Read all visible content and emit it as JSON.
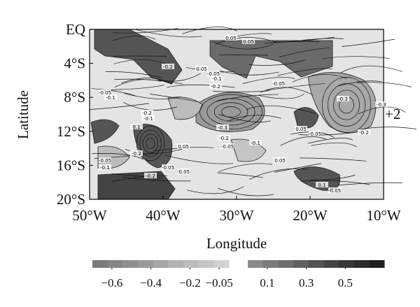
{
  "chart_data": {
    "type": "contour-map",
    "xlabel": "Longitude",
    "ylabel": "Latitude",
    "xlim": [
      -50,
      -10
    ],
    "ylim": [
      -20,
      0
    ],
    "xticks": [
      {
        "value": -50,
        "label": "50°W"
      },
      {
        "value": -40,
        "label": "40°W"
      },
      {
        "value": -30,
        "label": "30°W"
      },
      {
        "value": -20,
        "label": "20°W"
      },
      {
        "value": -10,
        "label": "10°W"
      }
    ],
    "yticks": [
      {
        "value": 0,
        "label": "EQ"
      },
      {
        "value": -4,
        "label": "4°S"
      },
      {
        "value": -8,
        "label": "8°S"
      },
      {
        "value": -12,
        "label": "12°S"
      },
      {
        "value": -16,
        "label": "16°S"
      },
      {
        "value": -20,
        "label": "20°S"
      }
    ],
    "annotation": "+2",
    "contour_labels": [
      0.05,
      -0.2,
      0.05,
      -0.05,
      -0.1,
      -0.2,
      -0.05,
      -0.1,
      -0.2,
      -0.1,
      0.1,
      -0.3,
      -0.2,
      -0.05,
      -0.1,
      -0.05,
      -0.3,
      -0.2,
      0.05,
      -0.05,
      -0.2,
      0.05,
      -0.05,
      -0.1,
      -0.05,
      -0.05,
      0.1,
      -0.05,
      -0.2,
      0.05,
      -0.3,
      0.05
    ],
    "colorbar": {
      "negative_colors": [
        "#7a7a7a",
        "#858585",
        "#8f8f8f",
        "#9a9a9a",
        "#a6a6a6",
        "#b2b2b2",
        "#bcbcbc",
        "#c6c6c6",
        "#d2d2d2"
      ],
      "positive_colors": [
        "#8a8a8a",
        "#7c7c7c",
        "#6e6e6e",
        "#606060",
        "#525252",
        "#454545",
        "#383838",
        "#2c2c2c",
        "#202020"
      ],
      "negative_lim": [
        -0.7,
        0
      ],
      "positive_lim": [
        0,
        0.7
      ],
      "negative_ticks": [
        {
          "value": -0.6,
          "label": "−0.6"
        },
        {
          "value": -0.4,
          "label": "−0.4"
        },
        {
          "value": -0.2,
          "label": "−0.2"
        },
        {
          "value": -0.05,
          "label": "−0.05"
        }
      ],
      "positive_ticks": [
        0.1,
        0.3,
        0.5
      ]
    }
  }
}
